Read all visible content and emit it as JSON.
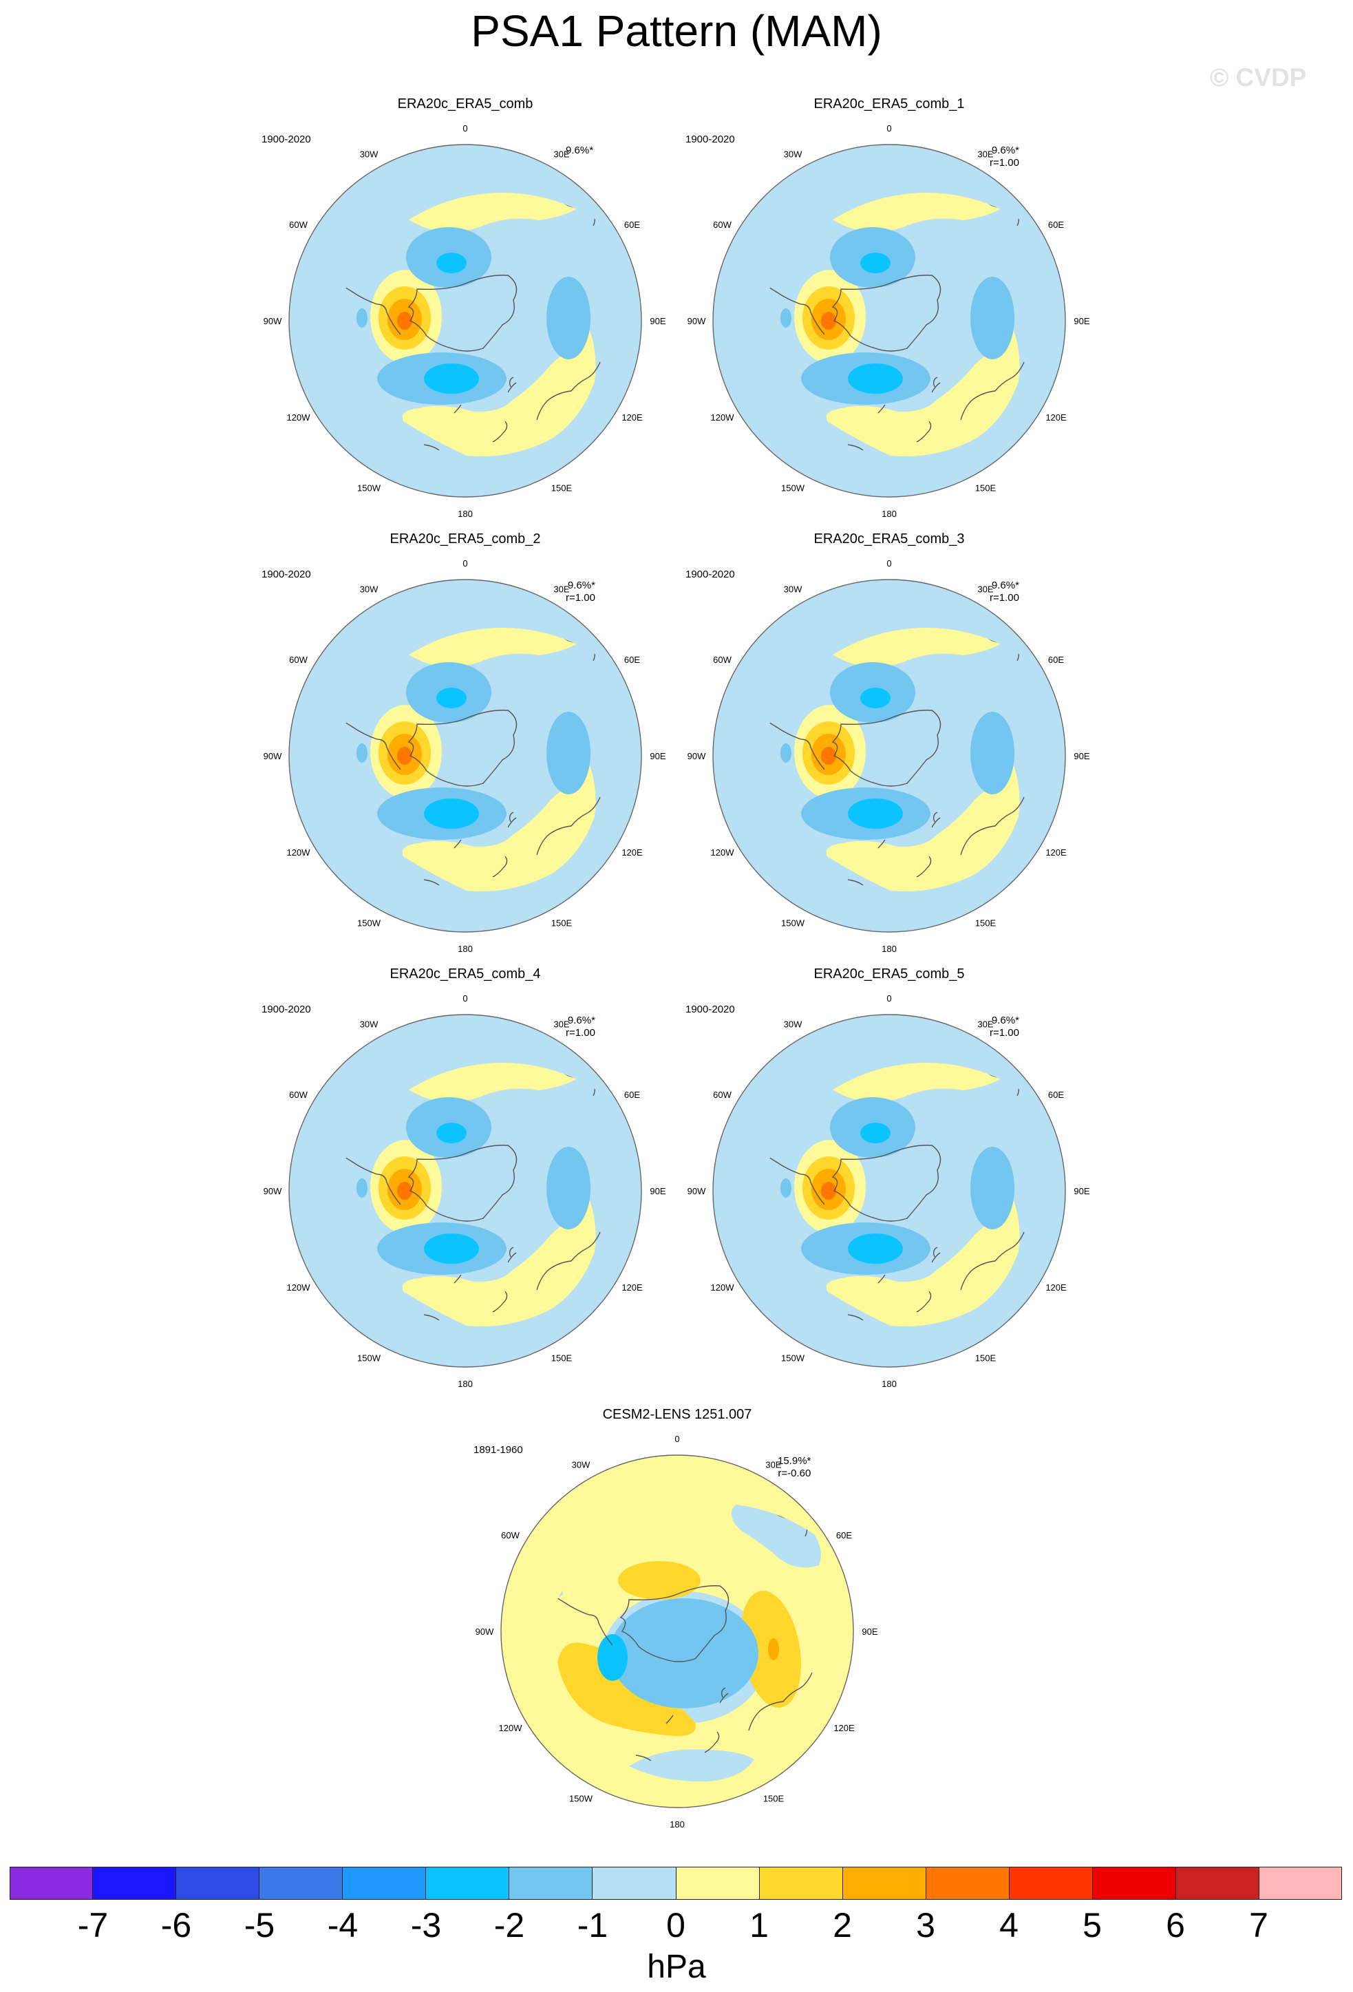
{
  "title": "PSA1 Pattern (MAM)",
  "watermark": "© CVDP",
  "lon_labels": [
    "0",
    "30E",
    "60E",
    "90E",
    "120E",
    "150E",
    "180",
    "150W",
    "120W",
    "90W",
    "60W",
    "30W"
  ],
  "panels": [
    {
      "id": "p0",
      "title": "ERA20c_ERA5_comb",
      "period": "1900-2020",
      "pct": "9.6%*",
      "r": "",
      "pattern": "obs"
    },
    {
      "id": "p1",
      "title": "ERA20c_ERA5_comb_1",
      "period": "1900-2020",
      "pct": "9.6%*",
      "r": "r=1.00",
      "pattern": "obs"
    },
    {
      "id": "p2",
      "title": "ERA20c_ERA5_comb_2",
      "period": "1900-2020",
      "pct": "9.6%*",
      "r": "r=1.00",
      "pattern": "obs"
    },
    {
      "id": "p3",
      "title": "ERA20c_ERA5_comb_3",
      "period": "1900-2020",
      "pct": "9.6%*",
      "r": "r=1.00",
      "pattern": "obs"
    },
    {
      "id": "p4",
      "title": "ERA20c_ERA5_comb_4",
      "period": "1900-2020",
      "pct": "9.6%*",
      "r": "r=1.00",
      "pattern": "obs"
    },
    {
      "id": "p5",
      "title": "ERA20c_ERA5_comb_5",
      "period": "1900-2020",
      "pct": "9.6%*",
      "r": "r=1.00",
      "pattern": "obs"
    },
    {
      "id": "p6",
      "title": "CESM2-LENS 1251.007",
      "period": "1891-1960",
      "pct": "15.9%*",
      "r": "r=-0.60",
      "pattern": "model"
    }
  ],
  "colorbar": {
    "colors": [
      "#8a2be2",
      "#1c16ff",
      "#2e4ce8",
      "#3a78e8",
      "#1f98ff",
      "#0bc3ff",
      "#72c6f0",
      "#b8e0f4",
      "#fffa99",
      "#ffd72c",
      "#ffab00",
      "#ff7700",
      "#ff3500",
      "#ee0000",
      "#cc2222",
      "#ffb6b6"
    ],
    "ticks": [
      "-7",
      "-6",
      "-5",
      "-4",
      "-3",
      "-2",
      "-1",
      "0",
      "1",
      "2",
      "3",
      "4",
      "5",
      "6",
      "7"
    ],
    "units": "hPa"
  }
}
